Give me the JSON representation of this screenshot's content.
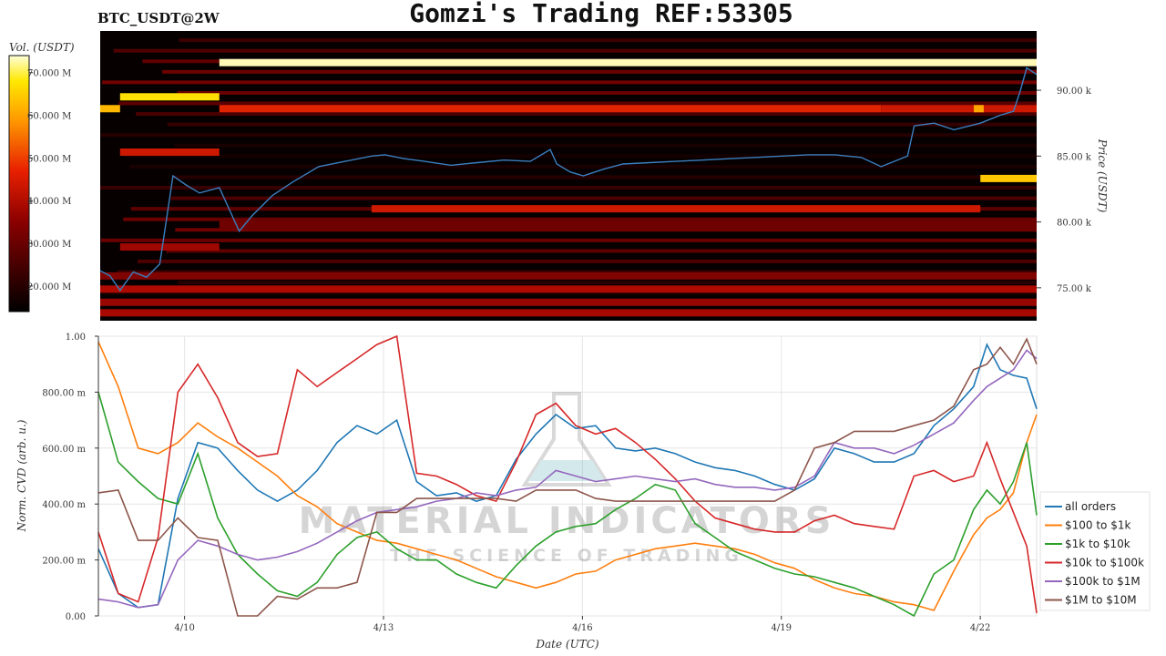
{
  "chart_data": [
    {
      "type": "heatmap",
      "symbol": "BTC_USDT@2W",
      "title": "Gomzi's Trading REF:53305",
      "colorbar_label": "Vol. (USDT)",
      "colorbar_ticks": [
        "20.000 M",
        "30.000 M",
        "40.000 M",
        "50.000 M",
        "60.000 M",
        "70.000 M"
      ],
      "colorbar_values": [
        20,
        30,
        40,
        50,
        60,
        70
      ],
      "colorbar_range": [
        14,
        74
      ],
      "ylabel": "Price (USDT)",
      "y_ticks": [
        "75.00 k",
        "80.00 k",
        "85.00 k",
        "90.00 k"
      ],
      "y_tick_values": [
        75,
        80,
        85,
        90
      ],
      "ylim": [
        72.5,
        94.5
      ],
      "x_range_days": [
        8.7,
        22.85
      ],
      "price_series": {
        "name": "price",
        "color": "#3a7fc0",
        "x": [
          8.7,
          8.85,
          9.0,
          9.2,
          9.4,
          9.6,
          9.8,
          10.0,
          10.2,
          10.5,
          10.8,
          11.0,
          11.3,
          11.6,
          12.0,
          12.4,
          12.8,
          13.0,
          13.3,
          13.6,
          14.0,
          14.4,
          14.8,
          15.2,
          15.5,
          15.6,
          15.8,
          16.0,
          16.3,
          16.6,
          17.0,
          17.4,
          17.8,
          18.2,
          18.6,
          19.0,
          19.4,
          19.8,
          20.2,
          20.5,
          20.9,
          21.0,
          21.3,
          21.6,
          22.0,
          22.3,
          22.5,
          22.6,
          22.7,
          22.85
        ],
        "y": [
          76.3,
          75.9,
          74.8,
          76.2,
          75.8,
          76.8,
          83.5,
          82.8,
          82.2,
          82.6,
          79.3,
          80.5,
          82.0,
          83.0,
          84.2,
          84.6,
          85.0,
          85.1,
          84.8,
          84.6,
          84.3,
          84.5,
          84.7,
          84.6,
          85.5,
          84.4,
          83.8,
          83.5,
          84.0,
          84.4,
          84.5,
          84.6,
          84.7,
          84.8,
          84.9,
          85.0,
          85.1,
          85.1,
          84.9,
          84.2,
          85.0,
          87.3,
          87.5,
          87.0,
          87.5,
          88.1,
          88.4,
          89.9,
          91.7,
          91.2
        ]
      },
      "bands": [
        {
          "price": 92.1,
          "x0": 10.5,
          "x1": 22.85,
          "vol": 72
        },
        {
          "price": 89.5,
          "x0": 9.0,
          "x1": 10.5,
          "vol": 65
        },
        {
          "price": 88.6,
          "x0": 8.7,
          "x1": 9.0,
          "vol": 60
        },
        {
          "price": 88.6,
          "x0": 10.5,
          "x1": 20.5,
          "vol": 43
        },
        {
          "price": 88.6,
          "x0": 20.5,
          "x1": 22.85,
          "vol": 40
        },
        {
          "price": 88.6,
          "x0": 21.9,
          "x1": 22.05,
          "vol": 58
        },
        {
          "price": 85.3,
          "x0": 9.0,
          "x1": 10.5,
          "vol": 40
        },
        {
          "price": 83.3,
          "x0": 22.0,
          "x1": 22.85,
          "vol": 62
        },
        {
          "price": 81.0,
          "x0": 12.8,
          "x1": 22.0,
          "vol": 40
        },
        {
          "price": 79.8,
          "x0": 10.5,
          "x1": 22.85,
          "vol": 28
        },
        {
          "price": 78.1,
          "x0": 9.0,
          "x1": 10.5,
          "vol": 34
        },
        {
          "price": 75.9,
          "x0": 8.7,
          "x1": 22.85,
          "vol": 30
        },
        {
          "price": 74.9,
          "x0": 8.7,
          "x1": 22.85,
          "vol": 36
        },
        {
          "price": 73.9,
          "x0": 8.7,
          "x1": 22.85,
          "vol": 33
        },
        {
          "price": 73.1,
          "x0": 8.7,
          "x1": 22.85,
          "vol": 35
        }
      ]
    },
    {
      "type": "line",
      "xlabel": "Date (UTC)",
      "ylabel": "Norm. CVD (arb. u.)",
      "x_ticks": [
        "4/10",
        "4/13",
        "4/16",
        "4/19",
        "4/22"
      ],
      "x_tick_values": [
        10,
        13,
        16,
        19,
        22
      ],
      "y_ticks": [
        "0.00",
        "200.00 m",
        "400.00 m",
        "600.00 m",
        "800.00 m",
        "1.00"
      ],
      "y_tick_values": [
        0,
        0.2,
        0.4,
        0.6,
        0.8,
        1.0
      ],
      "xlim": [
        8.7,
        22.85
      ],
      "ylim": [
        0,
        1.0
      ],
      "legend_position": "bottom-right",
      "x": [
        8.7,
        9.0,
        9.3,
        9.6,
        9.9,
        10.2,
        10.5,
        10.8,
        11.1,
        11.4,
        11.7,
        12.0,
        12.3,
        12.6,
        12.9,
        13.2,
        13.5,
        13.8,
        14.1,
        14.4,
        14.7,
        15.0,
        15.3,
        15.6,
        15.9,
        16.2,
        16.5,
        16.8,
        17.1,
        17.4,
        17.7,
        18.0,
        18.3,
        18.6,
        18.9,
        19.2,
        19.5,
        19.8,
        20.1,
        20.4,
        20.7,
        21.0,
        21.3,
        21.6,
        21.9,
        22.1,
        22.3,
        22.5,
        22.7,
        22.85
      ],
      "series": [
        {
          "name": "all orders",
          "color": "#1f77b4",
          "values": [
            0.24,
            0.08,
            0.03,
            0.04,
            0.42,
            0.62,
            0.6,
            0.52,
            0.45,
            0.41,
            0.45,
            0.52,
            0.62,
            0.68,
            0.65,
            0.7,
            0.48,
            0.43,
            0.44,
            0.41,
            0.43,
            0.56,
            0.65,
            0.72,
            0.67,
            0.68,
            0.6,
            0.59,
            0.6,
            0.58,
            0.55,
            0.53,
            0.52,
            0.5,
            0.47,
            0.45,
            0.49,
            0.6,
            0.58,
            0.55,
            0.55,
            0.58,
            0.68,
            0.74,
            0.82,
            0.97,
            0.88,
            0.86,
            0.85,
            0.74
          ]
        },
        {
          "name": "$100 to $1k",
          "color": "#ff7f0e",
          "values": [
            0.98,
            0.82,
            0.6,
            0.58,
            0.62,
            0.69,
            0.64,
            0.6,
            0.55,
            0.5,
            0.43,
            0.39,
            0.33,
            0.3,
            0.27,
            0.26,
            0.24,
            0.22,
            0.2,
            0.17,
            0.14,
            0.12,
            0.1,
            0.12,
            0.15,
            0.16,
            0.2,
            0.22,
            0.24,
            0.25,
            0.26,
            0.25,
            0.24,
            0.22,
            0.19,
            0.17,
            0.13,
            0.1,
            0.08,
            0.07,
            0.05,
            0.04,
            0.02,
            0.16,
            0.29,
            0.35,
            0.38,
            0.44,
            0.62,
            0.72
          ]
        },
        {
          "name": "$1k to $10k",
          "color": "#2ca02c",
          "values": [
            0.8,
            0.55,
            0.48,
            0.42,
            0.4,
            0.58,
            0.35,
            0.22,
            0.15,
            0.09,
            0.07,
            0.12,
            0.22,
            0.28,
            0.3,
            0.24,
            0.2,
            0.2,
            0.15,
            0.12,
            0.1,
            0.18,
            0.25,
            0.3,
            0.32,
            0.33,
            0.38,
            0.42,
            0.47,
            0.45,
            0.33,
            0.28,
            0.23,
            0.2,
            0.17,
            0.15,
            0.14,
            0.12,
            0.1,
            0.07,
            0.04,
            0.0,
            0.15,
            0.2,
            0.38,
            0.45,
            0.4,
            0.48,
            0.62,
            0.36
          ]
        },
        {
          "name": "$10k to $100k",
          "color": "#d62728",
          "values": [
            0.3,
            0.08,
            0.05,
            0.28,
            0.8,
            0.9,
            0.78,
            0.62,
            0.57,
            0.58,
            0.88,
            0.82,
            0.87,
            0.92,
            0.97,
            1.0,
            0.51,
            0.5,
            0.47,
            0.43,
            0.41,
            0.55,
            0.72,
            0.76,
            0.68,
            0.65,
            0.67,
            0.62,
            0.56,
            0.49,
            0.41,
            0.35,
            0.33,
            0.31,
            0.3,
            0.3,
            0.34,
            0.36,
            0.33,
            0.32,
            0.31,
            0.5,
            0.52,
            0.48,
            0.5,
            0.62,
            0.49,
            0.37,
            0.25,
            0.01
          ]
        },
        {
          "name": "$100k to $1M",
          "color": "#9467bd",
          "values": [
            0.06,
            0.05,
            0.03,
            0.04,
            0.2,
            0.27,
            0.25,
            0.22,
            0.2,
            0.21,
            0.23,
            0.26,
            0.3,
            0.34,
            0.37,
            0.38,
            0.39,
            0.41,
            0.42,
            0.44,
            0.43,
            0.45,
            0.46,
            0.52,
            0.5,
            0.48,
            0.49,
            0.5,
            0.49,
            0.48,
            0.49,
            0.47,
            0.46,
            0.46,
            0.45,
            0.46,
            0.5,
            0.62,
            0.6,
            0.6,
            0.58,
            0.61,
            0.65,
            0.69,
            0.77,
            0.82,
            0.85,
            0.88,
            0.95,
            0.92
          ]
        },
        {
          "name": "$1M to $10M",
          "color": "#8c564b",
          "values": [
            0.44,
            0.45,
            0.27,
            0.27,
            0.35,
            0.28,
            0.27,
            0.0,
            0.0,
            0.07,
            0.06,
            0.1,
            0.1,
            0.12,
            0.37,
            0.37,
            0.42,
            0.42,
            0.42,
            0.42,
            0.42,
            0.41,
            0.45,
            0.45,
            0.45,
            0.42,
            0.41,
            0.41,
            0.41,
            0.41,
            0.41,
            0.41,
            0.41,
            0.41,
            0.41,
            0.45,
            0.6,
            0.62,
            0.66,
            0.66,
            0.66,
            0.68,
            0.7,
            0.75,
            0.88,
            0.9,
            0.96,
            0.9,
            0.99,
            0.9
          ]
        }
      ]
    }
  ],
  "watermark": {
    "main": "MATERIAL INDICATORS",
    "sub": "THE SCIENCE OF TRADING"
  }
}
